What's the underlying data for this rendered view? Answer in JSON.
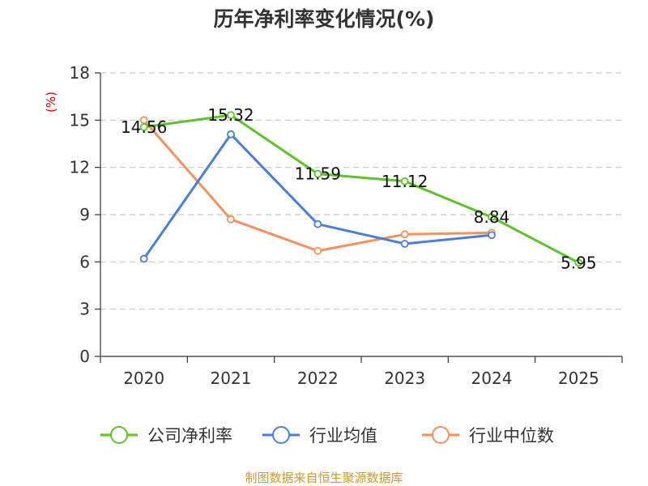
{
  "chart_data": {
    "type": "line",
    "title": "历年净利率变化情况(%)",
    "ylabel": "(%)",
    "xlabel": "",
    "categories": [
      "2020",
      "2021",
      "2022",
      "2023",
      "2024",
      "2025"
    ],
    "ylim": [
      0,
      18
    ],
    "yticks": [
      0,
      3,
      6,
      9,
      12,
      15,
      18
    ],
    "grid": true,
    "legend_position": "bottom",
    "series": [
      {
        "name": "公司净利率",
        "color": "#5ec22a",
        "values": [
          14.56,
          15.32,
          11.59,
          11.12,
          8.84,
          5.95
        ],
        "labels": [
          "14.56",
          "15.32",
          "11.59",
          "11.12",
          "8.84",
          "5.95"
        ]
      },
      {
        "name": "行业均值",
        "color": "#4a7fd6",
        "values": [
          6.2,
          14.1,
          8.4,
          7.15,
          7.7,
          null
        ]
      },
      {
        "name": "行业中位数",
        "color": "#f5915e",
        "values": [
          15.0,
          8.7,
          6.7,
          7.75,
          7.85,
          null
        ]
      }
    ]
  },
  "source": "制图数据来自恒生聚源数据库"
}
